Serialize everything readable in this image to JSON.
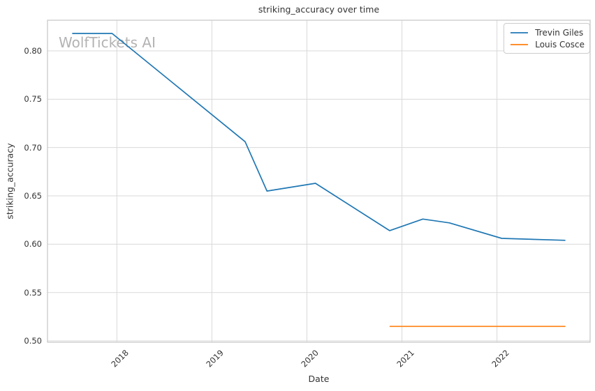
{
  "title": "striking_accuracy over time",
  "watermark": "WolfTickets AI",
  "axes": {
    "x_label": "Date",
    "y_label": "striking_accuracy"
  },
  "style": {
    "grid_color": "#d9d9d9",
    "spine_color": "#c9c9c9",
    "text_color": "#333333",
    "watermark_color": "#b3b3b3",
    "background_color": "#ffffff"
  },
  "chart_data": {
    "type": "line",
    "title": "striking_accuracy over time",
    "xlabel": "Date",
    "ylabel": "striking_accuracy",
    "xlim": [
      2017.27,
      2022.98
    ],
    "ylim": [
      0.4986,
      0.8317
    ],
    "xticks": [
      2018,
      2019,
      2020,
      2021,
      2022
    ],
    "yticks": [
      0.5,
      0.55,
      0.6,
      0.65,
      0.7,
      0.75,
      0.8
    ],
    "grid": true,
    "legend_position": "upper right",
    "series": [
      {
        "name": "Trevin Giles",
        "color": "#1f77b4",
        "x": [
          2017.53,
          2017.95,
          2019.35,
          2019.58,
          2020.09,
          2020.87,
          2021.22,
          2021.5,
          2022.05,
          2022.72
        ],
        "y": [
          0.818,
          0.818,
          0.706,
          0.655,
          0.663,
          0.614,
          0.626,
          0.622,
          0.606,
          0.604
        ]
      },
      {
        "name": "Louis Cosce",
        "color": "#ff7f0e",
        "x": [
          2020.87,
          2022.72
        ],
        "y": [
          0.515,
          0.515
        ]
      }
    ]
  }
}
